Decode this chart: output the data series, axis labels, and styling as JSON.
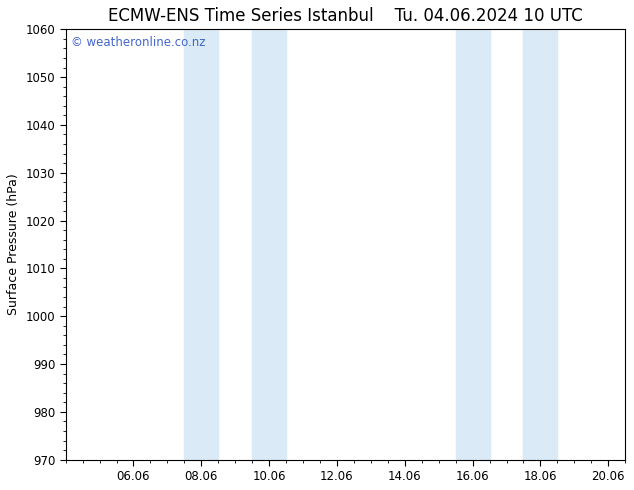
{
  "title_left": "ECMW-ENS Time Series Istanbul",
  "title_right": "Tu. 04.06.2024 10 UTC",
  "ylabel": "Surface Pressure (hPa)",
  "ylim": [
    970,
    1060
  ],
  "yticks": [
    970,
    980,
    990,
    1000,
    1010,
    1020,
    1030,
    1040,
    1050,
    1060
  ],
  "xtick_labels": [
    "06.06",
    "08.06",
    "10.06",
    "12.06",
    "14.06",
    "16.06",
    "18.06",
    "20.06"
  ],
  "xtick_positions": [
    2,
    4,
    6,
    8,
    10,
    12,
    14,
    16
  ],
  "xlim": [
    0,
    16.5
  ],
  "shaded_bands": [
    {
      "x_start": 3.5,
      "x_end": 4.5
    },
    {
      "x_start": 5.5,
      "x_end": 6.5
    },
    {
      "x_start": 11.5,
      "x_end": 12.5
    },
    {
      "x_start": 13.5,
      "x_end": 14.5
    }
  ],
  "shaded_color": "#daeaf6",
  "background_color": "#ffffff",
  "plot_bg_color": "#ffffff",
  "watermark_text": "© weatheronline.co.nz",
  "watermark_color": "#4466cc",
  "title_fontsize": 12,
  "label_fontsize": 9,
  "tick_fontsize": 8.5,
  "watermark_fontsize": 8.5,
  "title_gap": "    ",
  "minor_xtick_step": 0.5,
  "minor_ytick_step": 2
}
